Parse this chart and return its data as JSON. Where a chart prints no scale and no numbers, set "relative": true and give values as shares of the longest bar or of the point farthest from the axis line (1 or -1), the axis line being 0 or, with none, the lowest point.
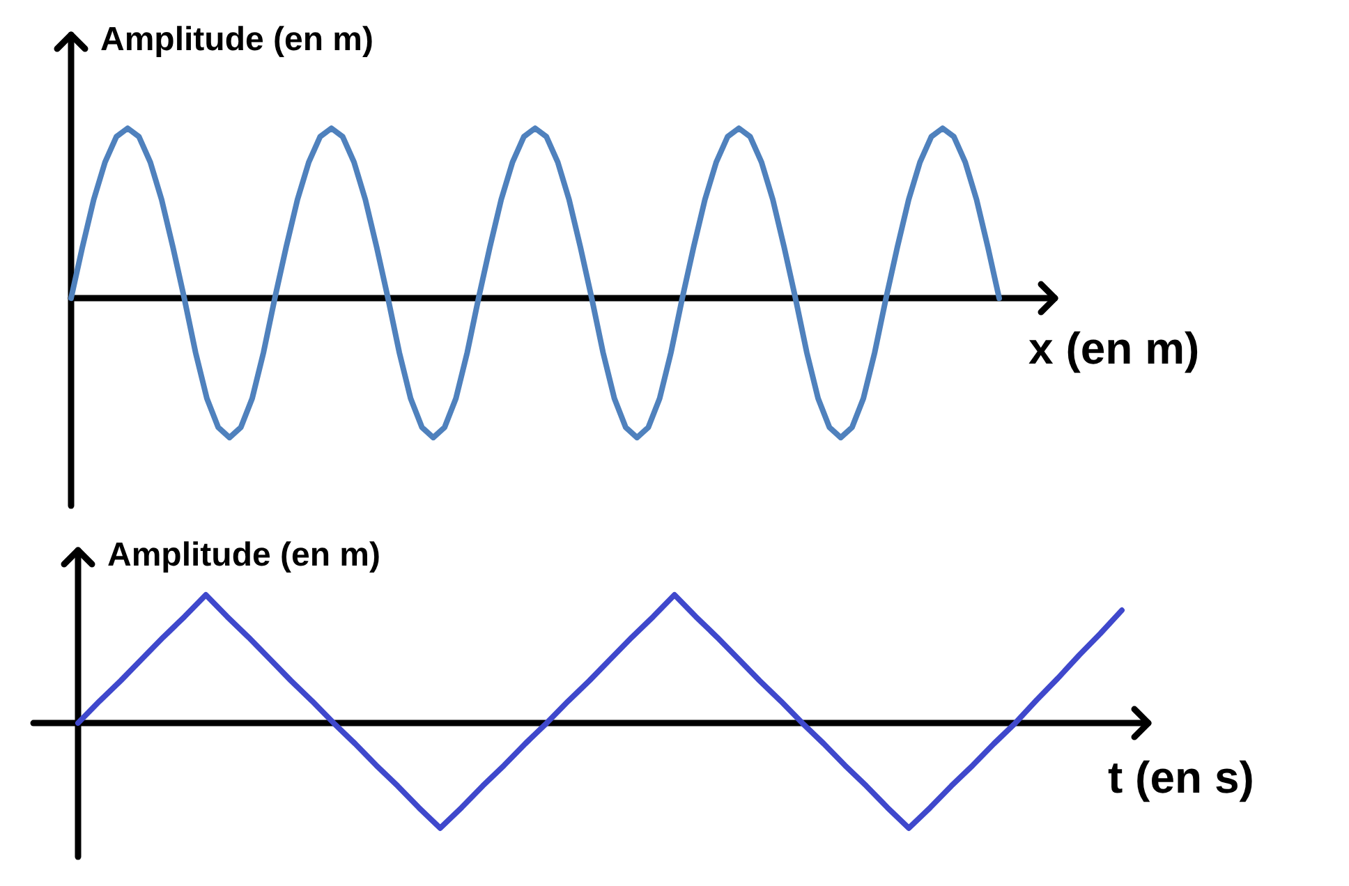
{
  "chart_data": [
    {
      "type": "line",
      "ylabel": "Amplitude (en m)",
      "xlabel": "x (en m)",
      "relative": true,
      "categories": [
        null,
        null,
        null,
        null,
        null,
        null,
        null,
        null,
        null,
        null,
        null,
        null,
        null,
        null,
        null,
        null,
        null,
        null,
        null,
        null,
        null,
        null,
        null,
        null,
        null,
        null,
        null,
        null,
        null,
        null,
        null,
        null,
        null,
        null,
        null,
        null,
        null,
        null,
        null,
        null,
        null,
        null,
        null,
        null,
        null,
        null,
        null,
        null,
        null,
        null,
        null,
        null,
        null,
        null,
        null,
        null,
        null,
        null,
        null,
        null,
        null,
        null,
        null,
        null,
        null,
        null,
        null,
        null,
        null,
        null,
        null,
        null,
        null,
        null,
        null,
        null,
        null,
        null,
        null,
        null,
        null,
        null,
        null
      ],
      "series": [
        {
          "color": "#4f81bd",
          "values": [
            0,
            0.3,
            0.58,
            0.8,
            0.95,
            1,
            0.95,
            0.8,
            0.58,
            0.3,
            0,
            -0.32,
            -0.59,
            -0.76,
            -0.82,
            -0.76,
            -0.59,
            -0.32,
            0,
            0.3,
            0.58,
            0.8,
            0.95,
            1,
            0.95,
            0.8,
            0.58,
            0.3,
            0,
            -0.32,
            -0.59,
            -0.76,
            -0.82,
            -0.76,
            -0.59,
            -0.32,
            0,
            0.3,
            0.58,
            0.8,
            0.95,
            1,
            0.95,
            0.8,
            0.58,
            0.3,
            0,
            -0.32,
            -0.59,
            -0.76,
            -0.82,
            -0.76,
            -0.59,
            -0.32,
            0,
            0.3,
            0.58,
            0.8,
            0.95,
            1,
            0.95,
            0.8,
            0.58,
            0.3,
            0,
            -0.32,
            -0.59,
            -0.76,
            -0.82,
            -0.76,
            -0.59,
            -0.32,
            0,
            0.3,
            0.58,
            0.8,
            0.95,
            1,
            0.95,
            0.8,
            0.58,
            0.3,
            0
          ]
        }
      ]
    },
    {
      "type": "line",
      "ylabel": "Amplitude (en m)",
      "xlabel": "t (en s)",
      "relative": true,
      "categories": [
        null,
        null,
        null,
        null,
        null,
        null,
        null,
        null,
        null,
        null,
        null,
        null,
        null,
        null,
        null,
        null,
        null,
        null,
        null,
        null,
        null,
        null,
        null,
        null,
        null,
        null,
        null,
        null,
        null,
        null,
        null,
        null,
        null,
        null,
        null,
        null,
        null,
        null,
        null,
        null,
        null,
        null,
        null,
        null,
        null,
        null,
        null,
        null,
        null,
        null
      ],
      "series": [
        {
          "color": "#3f48cc",
          "values": [
            0,
            0.17,
            0.33,
            0.5,
            0.67,
            0.83,
            1,
            0.83,
            0.67,
            0.5,
            0.33,
            0.17,
            0,
            -0.16,
            -0.33,
            -0.49,
            -0.66,
            -0.82,
            -0.66,
            -0.49,
            -0.33,
            -0.16,
            0,
            0.17,
            0.33,
            0.5,
            0.67,
            0.83,
            1,
            0.83,
            0.67,
            0.5,
            0.33,
            0.17,
            0,
            -0.16,
            -0.33,
            -0.49,
            -0.66,
            -0.82,
            -0.66,
            -0.49,
            -0.33,
            -0.16,
            0,
            0.18,
            0.35,
            0.53,
            0.7,
            0.88
          ]
        }
      ]
    }
  ]
}
